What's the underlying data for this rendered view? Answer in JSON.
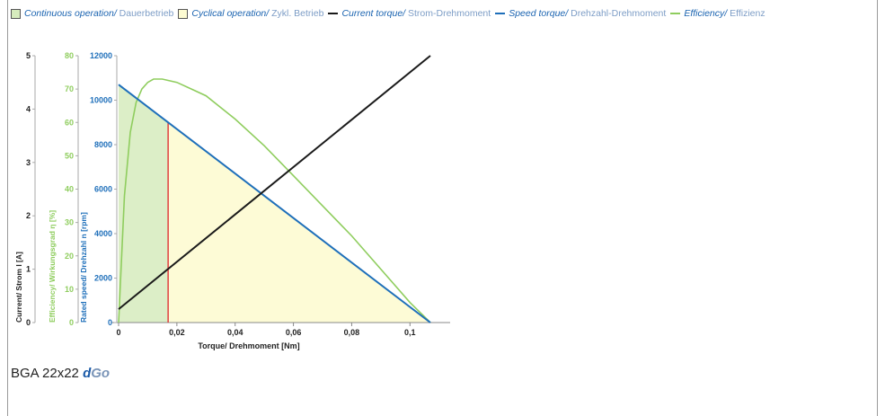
{
  "legend": {
    "continuous": {
      "en": "Continuous operation",
      "de": "Dauerbetrieb",
      "color": "#d6ebbd"
    },
    "cyclical": {
      "en": "Cyclical operation",
      "de": "Zykl. Betrieb",
      "color": "#fdfbd2"
    },
    "current": {
      "en": "Current torque",
      "de": "Strom-Drehmoment",
      "color": "#1a1a1a"
    },
    "speed": {
      "en": "Speed torque",
      "de": "Drehzahl-Drehmoment",
      "color": "#1e6fba"
    },
    "efficiency": {
      "en": "Efficiency",
      "de": "Effizienz",
      "color": "#8fcd5e"
    }
  },
  "caption": {
    "model": "BGA 22x22",
    "brand_d": "d",
    "brand_go": "Go"
  },
  "chart_data": {
    "type": "line",
    "xlabel": "Torque/ Drehmoment [Nm]",
    "xlim": [
      0,
      0.107
    ],
    "x_ticks": [
      "0",
      "0,02",
      "0,04",
      "0,06",
      "0,08",
      "0,1"
    ],
    "x_tick_values": [
      0,
      0.02,
      0.04,
      0.06,
      0.08,
      0.1
    ],
    "axes": {
      "current": {
        "label": "Current/ Strom I [A]",
        "lim": [
          0,
          5
        ],
        "ticks": [
          "0",
          "1",
          "2",
          "3",
          "4",
          "5"
        ]
      },
      "efficiency": {
        "label": "Efficiency/ Wirkungsgrad η [%]",
        "lim": [
          0,
          80
        ],
        "ticks": [
          "0",
          "10",
          "20",
          "30",
          "40",
          "50",
          "60",
          "70",
          "80"
        ]
      },
      "speed": {
        "label": "Rated speed/ Drehzahl n [rpm]",
        "lim": [
          0,
          12000
        ],
        "ticks": [
          "0",
          "2000",
          "4000",
          "6000",
          "8000",
          "10000",
          "12000"
        ]
      }
    },
    "rated_torque": 0.017,
    "series": [
      {
        "name": "Current torque",
        "axis": "current",
        "x": [
          0,
          0.107
        ],
        "y": [
          0.25,
          5.0
        ]
      },
      {
        "name": "Speed torque",
        "axis": "speed",
        "x": [
          0,
          0.107
        ],
        "y": [
          10700,
          0
        ]
      },
      {
        "name": "Efficiency",
        "axis": "efficiency",
        "x": [
          0,
          0.002,
          0.004,
          0.006,
          0.008,
          0.01,
          0.012,
          0.015,
          0.02,
          0.025,
          0.03,
          0.04,
          0.05,
          0.06,
          0.07,
          0.08,
          0.09,
          0.1,
          0.107
        ],
        "y": [
          0,
          38,
          57,
          66,
          70,
          72,
          73,
          73,
          72,
          70,
          68,
          61,
          53,
          44,
          35,
          26,
          16,
          6,
          0
        ]
      }
    ]
  }
}
